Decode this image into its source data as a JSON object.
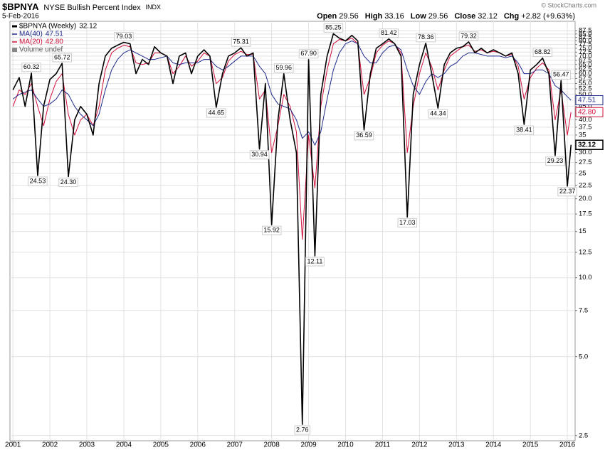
{
  "chart_data": {
    "type": "line",
    "title": "$BPNYA",
    "subtitle": "NYSE Bullish Percent Index",
    "exchange": "INDX",
    "date": "5-Feb-2016",
    "watermark": "© StockCharts.com",
    "quote": [
      {
        "label": "Open",
        "value": 29.56
      },
      {
        "label": "High",
        "value": 33.16
      },
      {
        "label": "Low",
        "value": 29.56
      },
      {
        "label": "Close",
        "value": 32.12
      },
      {
        "label": "Chg",
        "value": 2.82,
        "value_label": "+2.82"
      }
    ],
    "change_percent": {
      "value": 9.63,
      "label": "(+9.63%)"
    },
    "volume_legend": "Volume undef",
    "log_scale": true,
    "grid": true,
    "xlim": [
      2000.92,
      2016.21
    ],
    "xticks": [
      2001,
      2002,
      2003,
      2004,
      2005,
      2006,
      2007,
      2008,
      2009,
      2010,
      2011,
      2012,
      2013,
      2014,
      2015,
      2016
    ],
    "ylim": [
      2.39,
      95
    ],
    "yticks": [
      2.5,
      {
        "value": 5,
        "label": "5.0"
      },
      7.5,
      {
        "value": 10,
        "label": "10.0"
      },
      12.5,
      15,
      17.5,
      {
        "value": 20,
        "label": "20.0"
      },
      22.5,
      25,
      27.5,
      {
        "value": 30,
        "label": "30.0"
      },
      35,
      37.5,
      {
        "value": 40,
        "label": "40.0"
      },
      {
        "value": 45,
        "label": "45.0"
      },
      {
        "value": 50,
        "label": "50.0"
      },
      52.5,
      {
        "value": 55,
        "label": "55.0"
      },
      57.5,
      {
        "value": 60,
        "label": "60.0"
      },
      62.5,
      {
        "value": 65,
        "label": "65.0"
      },
      67.5,
      {
        "value": 70,
        "label": "70.0"
      },
      72.5,
      {
        "value": 75,
        "label": "75.0"
      },
      77.5,
      {
        "value": 80,
        "label": "80.0"
      },
      82.5,
      {
        "value": 85,
        "label": "85.0"
      },
      87.5
    ],
    "x": [
      2001,
      2001.17,
      2001.33,
      2001.5,
      2001.67,
      2001.83,
      2002,
      2002.17,
      2002.33,
      2002.5,
      2002.67,
      2002.83,
      2003,
      2003.17,
      2003.33,
      2003.5,
      2003.67,
      2003.83,
      2004,
      2004.17,
      2004.33,
      2004.5,
      2004.67,
      2004.83,
      2005,
      2005.17,
      2005.33,
      2005.5,
      2005.67,
      2005.83,
      2006,
      2006.17,
      2006.33,
      2006.5,
      2006.67,
      2006.83,
      2007,
      2007.17,
      2007.33,
      2007.5,
      2007.67,
      2007.83,
      2008,
      2008.17,
      2008.33,
      2008.5,
      2008.67,
      2008.83,
      2009,
      2009.17,
      2009.33,
      2009.5,
      2009.67,
      2009.83,
      2010,
      2010.17,
      2010.33,
      2010.5,
      2010.67,
      2010.83,
      2011,
      2011.17,
      2011.33,
      2011.5,
      2011.67,
      2011.83,
      2012,
      2012.17,
      2012.33,
      2012.5,
      2012.67,
      2012.83,
      2013,
      2013.17,
      2013.33,
      2013.5,
      2013.67,
      2013.83,
      2014,
      2014.17,
      2014.33,
      2014.5,
      2014.67,
      2014.83,
      2015,
      2015.17,
      2015.33,
      2015.5,
      2015.67,
      2015.83,
      2016,
      2016.1
    ],
    "series": [
      {
        "name": "$BPNYA (Weekly)",
        "color": "#000000",
        "width": 1.6,
        "values": [
          52,
          58,
          45,
          60.32,
          24.53,
          45,
          57,
          60,
          65.72,
          24.3,
          40,
          45,
          42,
          35,
          55,
          70,
          75,
          77,
          79.03,
          78,
          60,
          68,
          65,
          76,
          72,
          70,
          55,
          70,
          72,
          60,
          70,
          74,
          70,
          44.65,
          60,
          70,
          72,
          75.31,
          70,
          72,
          30.94,
          55,
          15.92,
          40,
          59.96,
          40,
          30,
          2.76,
          67.9,
          12.11,
          50,
          70,
          85.25,
          82,
          80,
          84,
          80,
          36.59,
          60,
          75,
          78,
          81.42,
          78,
          70,
          17.03,
          50,
          65,
          78.36,
          60,
          44.34,
          65,
          72,
          75,
          76,
          79.32,
          72,
          75,
          72,
          74,
          72,
          70,
          72,
          60,
          38.41,
          62,
          65,
          68.82,
          60,
          29.23,
          56.47,
          22.37,
          32.12
        ]
      },
      {
        "name": "MA(40)",
        "color": "#1f2a8c",
        "width": 1,
        "values": [
          48,
          50,
          51,
          52,
          48,
          45,
          46,
          48,
          52,
          50,
          45,
          42,
          40,
          38,
          42,
          52,
          62,
          68,
          72,
          74,
          72,
          70,
          68,
          68,
          69,
          70,
          66,
          65,
          66,
          66,
          66,
          68,
          68,
          64,
          62,
          64,
          67,
          70,
          70,
          70,
          64,
          60,
          50,
          46,
          45,
          44,
          40,
          34,
          36,
          32,
          36,
          48,
          62,
          72,
          78,
          80,
          78,
          70,
          66,
          66,
          72,
          76,
          77,
          74,
          62,
          54,
          50,
          56,
          60,
          58,
          60,
          64,
          66,
          70,
          72,
          72,
          71,
          70,
          70,
          70,
          69,
          70,
          66,
          60,
          60,
          62,
          62,
          60,
          54,
          52,
          49,
          47.51
        ]
      },
      {
        "name": "MA(20)",
        "color": "#d0103a",
        "width": 1,
        "values": [
          45,
          52,
          50,
          55,
          45,
          38,
          48,
          56,
          60,
          42,
          35,
          40,
          42,
          38,
          45,
          62,
          72,
          75,
          77,
          76,
          66,
          65,
          66,
          72,
          72,
          70,
          60,
          64,
          70,
          64,
          67,
          72,
          70,
          55,
          58,
          67,
          71,
          73,
          71,
          71,
          48,
          52,
          30,
          38,
          50,
          45,
          36,
          14,
          35,
          22,
          45,
          62,
          78,
          81,
          80,
          82,
          78,
          50,
          58,
          72,
          77,
          80,
          78,
          72,
          30,
          45,
          60,
          72,
          64,
          52,
          62,
          70,
          73,
          76,
          77,
          73,
          74,
          72,
          73,
          72,
          70,
          71,
          64,
          48,
          58,
          63,
          66,
          62,
          40,
          52,
          35,
          42.8
        ],
        "value_labels": [
          null,
          null,
          null,
          null,
          null,
          null,
          null,
          null,
          null,
          null,
          null,
          null,
          null,
          null,
          null,
          null,
          null,
          null,
          null,
          null,
          null,
          null,
          null,
          null,
          null,
          null,
          null,
          null,
          null,
          null,
          null,
          null,
          null,
          null,
          null,
          null,
          null,
          null,
          null,
          null,
          null,
          null,
          null,
          null,
          null,
          null,
          null,
          null,
          null,
          null,
          null,
          null,
          null,
          null,
          null,
          null,
          null,
          null,
          null,
          null,
          null,
          null,
          null,
          null,
          null,
          null,
          null,
          null,
          null,
          null,
          null,
          null,
          null,
          null,
          null,
          null,
          null,
          null,
          null,
          null,
          null,
          null,
          null,
          null,
          null,
          null,
          null,
          null,
          null,
          null,
          null,
          "42.80"
        ]
      }
    ],
    "annotations": [
      {
        "x": 2001.5,
        "value": 60.32
      },
      {
        "x": 2001.67,
        "value": 24.53
      },
      {
        "x": 2002.33,
        "value": 65.72
      },
      {
        "x": 2002.5,
        "value": 24.3,
        "label": "24.30"
      },
      {
        "x": 2004,
        "value": 79.03
      },
      {
        "x": 2006.5,
        "value": 44.65
      },
      {
        "x": 2007.17,
        "value": 75.31
      },
      {
        "x": 2007.67,
        "value": 30.94
      },
      {
        "x": 2008,
        "value": 15.92
      },
      {
        "x": 2008.33,
        "value": 59.96
      },
      {
        "x": 2008.83,
        "value": 2.76
      },
      {
        "x": 2009,
        "value": 67.9,
        "label": "67.90"
      },
      {
        "x": 2009.17,
        "value": 12.11
      },
      {
        "x": 2009.67,
        "value": 85.25
      },
      {
        "x": 2010.5,
        "value": 36.59
      },
      {
        "x": 2011.17,
        "value": 81.42
      },
      {
        "x": 2011.67,
        "value": 17.03
      },
      {
        "x": 2012.17,
        "value": 78.36
      },
      {
        "x": 2012.5,
        "value": 44.34
      },
      {
        "x": 2013.33,
        "value": 79.32
      },
      {
        "x": 2014.83,
        "value": 38.41
      },
      {
        "x": 2015.33,
        "value": 68.82
      },
      {
        "x": 2015.67,
        "value": 29.23
      },
      {
        "x": 2015.83,
        "value": 56.47
      },
      {
        "x": 2016,
        "value": 22.37
      }
    ]
  }
}
